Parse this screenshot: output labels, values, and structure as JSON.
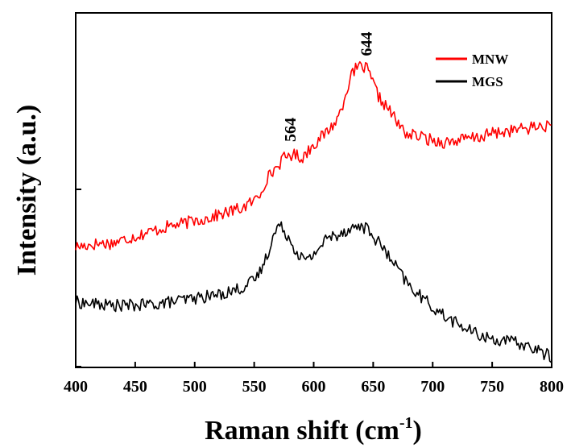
{
  "chart_data": {
    "type": "line",
    "xlabel": "Raman shift (cm",
    "xlabel_sup": "-1",
    "xlabel_end": ")",
    "ylabel": "Intensity (a.u.)",
    "xlim": [
      400,
      800
    ],
    "ylim": [
      0,
      1
    ],
    "xticks": [
      400,
      450,
      500,
      550,
      600,
      650,
      700,
      750,
      800
    ],
    "xtick_labels": [
      "400",
      "450",
      "500",
      "550",
      "600",
      "650",
      "700",
      "750",
      "800"
    ],
    "grid": false,
    "legend_position": "top-right",
    "annotations": [
      {
        "text": "564",
        "x": 580
      },
      {
        "text": "644",
        "x": 644
      }
    ],
    "series": [
      {
        "name": "MNW",
        "color": "#ff0000",
        "x": [
          400,
          410,
          420,
          430,
          440,
          450,
          460,
          470,
          480,
          490,
          500,
          510,
          520,
          530,
          540,
          550,
          555,
          560,
          565,
          570,
          575,
          580,
          585,
          590,
          595,
          600,
          605,
          610,
          615,
          620,
          625,
          630,
          635,
          640,
          645,
          650,
          655,
          660,
          665,
          670,
          675,
          680,
          685,
          690,
          700,
          710,
          720,
          730,
          740,
          750,
          760,
          770,
          780,
          790,
          800
        ],
        "y": [
          0.34,
          0.345,
          0.35,
          0.35,
          0.36,
          0.37,
          0.38,
          0.39,
          0.4,
          0.405,
          0.415,
          0.42,
          0.43,
          0.44,
          0.45,
          0.47,
          0.49,
          0.53,
          0.55,
          0.57,
          0.59,
          0.6,
          0.6,
          0.59,
          0.61,
          0.63,
          0.645,
          0.66,
          0.68,
          0.7,
          0.75,
          0.81,
          0.84,
          0.85,
          0.84,
          0.8,
          0.76,
          0.74,
          0.72,
          0.69,
          0.67,
          0.655,
          0.655,
          0.65,
          0.64,
          0.635,
          0.64,
          0.645,
          0.65,
          0.66,
          0.665,
          0.67,
          0.675,
          0.68,
          0.68
        ]
      },
      {
        "name": "MGS",
        "color": "#000000",
        "x": [
          400,
          410,
          420,
          430,
          440,
          450,
          460,
          470,
          480,
          490,
          500,
          510,
          520,
          530,
          540,
          550,
          555,
          560,
          565,
          570,
          575,
          580,
          585,
          590,
          595,
          600,
          605,
          610,
          615,
          620,
          625,
          630,
          635,
          640,
          645,
          650,
          655,
          660,
          665,
          670,
          680,
          690,
          700,
          710,
          720,
          730,
          740,
          750,
          760,
          770,
          780,
          790,
          800
        ],
        "y": [
          0.185,
          0.18,
          0.178,
          0.175,
          0.175,
          0.175,
          0.177,
          0.18,
          0.185,
          0.19,
          0.195,
          0.2,
          0.205,
          0.215,
          0.225,
          0.245,
          0.27,
          0.31,
          0.36,
          0.4,
          0.39,
          0.36,
          0.33,
          0.31,
          0.3,
          0.32,
          0.34,
          0.36,
          0.37,
          0.375,
          0.385,
          0.39,
          0.395,
          0.4,
          0.39,
          0.37,
          0.35,
          0.33,
          0.3,
          0.28,
          0.23,
          0.2,
          0.17,
          0.145,
          0.125,
          0.105,
          0.09,
          0.08,
          0.075,
          0.07,
          0.06,
          0.045,
          0.03
        ]
      }
    ]
  }
}
